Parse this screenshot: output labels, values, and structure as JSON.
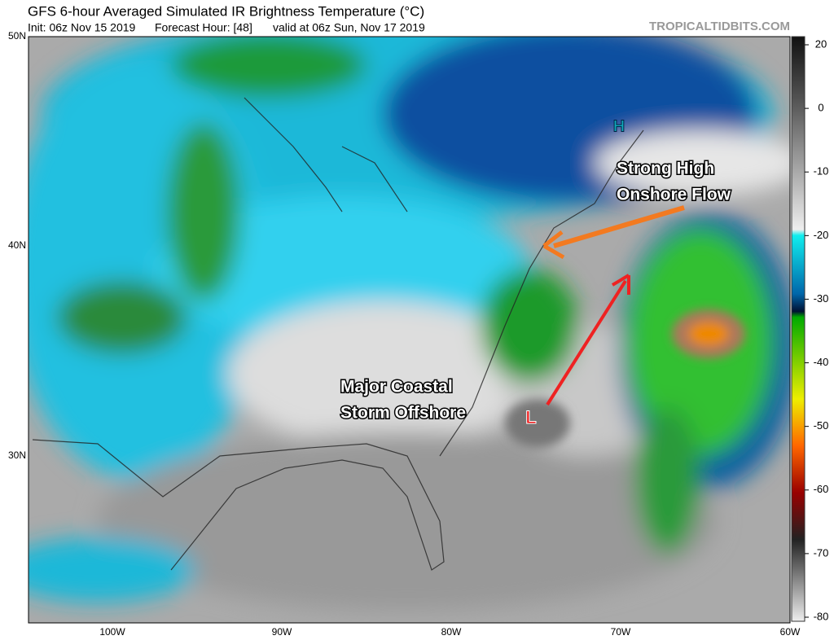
{
  "header": {
    "title": "GFS 6-hour Averaged Simulated IR Brightness Temperature (°C)",
    "init": "Init: 06z Nov 15 2019",
    "forecast": "Forecast Hour: [48]",
    "valid": "valid at 06z Sun, Nov 17 2019",
    "source": "TROPICALTIDBITS.COM"
  },
  "map": {
    "lat_labels": [
      "50N",
      "40N",
      "30N"
    ],
    "lon_labels": [
      "100W",
      "90W",
      "80W",
      "70W",
      "60W"
    ],
    "annotations": [
      {
        "lines": [
          "Strong High",
          "Onshore Flow"
        ]
      },
      {
        "lines": [
          "Major Coastal",
          "Storm Offshore"
        ]
      }
    ],
    "high": "H",
    "low": "L"
  },
  "colorbar": {
    "ticks": [
      20,
      0,
      -10,
      -20,
      -30,
      -40,
      -50,
      -60,
      -70,
      -80
    ]
  }
}
